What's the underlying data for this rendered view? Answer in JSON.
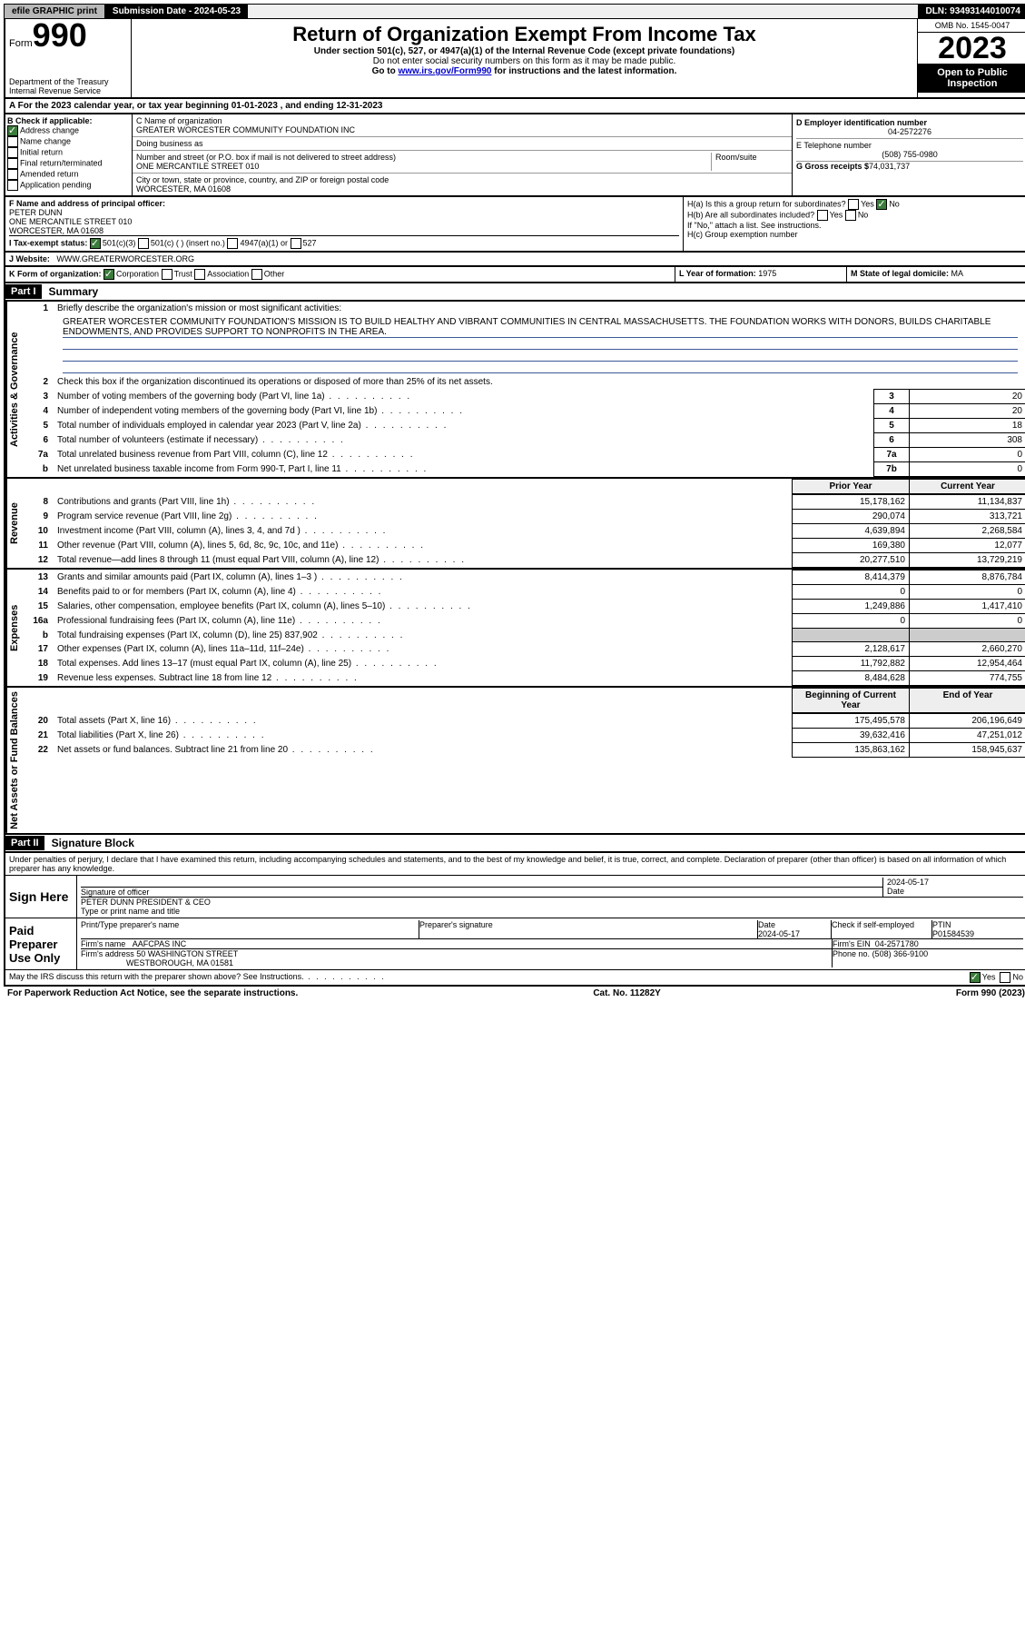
{
  "topbar": {
    "efile": "efile GRAPHIC print",
    "submission_label": "Submission Date - 2024-05-23",
    "dln": "DLN: 93493144010074"
  },
  "header": {
    "form_label": "Form",
    "form_num": "990",
    "title": "Return of Organization Exempt From Income Tax",
    "subtitle1": "Under section 501(c), 527, or 4947(a)(1) of the Internal Revenue Code (except private foundations)",
    "subtitle2": "Do not enter social security numbers on this form as it may be made public.",
    "subtitle3_pre": "Go to ",
    "subtitle3_link": "www.irs.gov/Form990",
    "subtitle3_post": " for instructions and the latest information.",
    "dept": "Department of the Treasury\nInternal Revenue Service",
    "omb": "OMB No. 1545-0047",
    "year": "2023",
    "open": "Open to Public Inspection"
  },
  "row_a": "A For the 2023 calendar year, or tax year beginning 01-01-2023   , and ending 12-31-2023",
  "col_b": {
    "label": "B Check if applicable:",
    "opts": [
      "Address change",
      "Name change",
      "Initial return",
      "Final return/terminated",
      "Amended return",
      "Application pending"
    ],
    "checked_idx": 0
  },
  "col_c": {
    "name_label": "C Name of organization",
    "name": "GREATER WORCESTER COMMUNITY FOUNDATION INC",
    "dba_label": "Doing business as",
    "addr_label": "Number and street (or P.O. box if mail is not delivered to street address)",
    "room_label": "Room/suite",
    "addr": "ONE MERCANTILE STREET 010",
    "city_label": "City or town, state or province, country, and ZIP or foreign postal code",
    "city": "WORCESTER, MA  01608"
  },
  "col_d": {
    "ein_label": "D Employer identification number",
    "ein": "04-2572276",
    "tel_label": "E Telephone number",
    "tel": "(508) 755-0980",
    "gross_label": "G Gross receipts $",
    "gross": "74,031,737"
  },
  "block_f": {
    "label": "F  Name and address of principal officer:",
    "name": "PETER DUNN",
    "addr1": "ONE MERCANTILE STREET 010",
    "addr2": "WORCESTER, MA  01608"
  },
  "block_h": {
    "ha": "H(a)  Is this a group return for subordinates?",
    "ha_yes": "Yes",
    "ha_no": "No",
    "hb": "H(b)  Are all subordinates included?",
    "hb_note": "If \"No,\" attach a list. See instructions.",
    "hc": "H(c)  Group exemption number"
  },
  "row_i": {
    "label": "I   Tax-exempt status:",
    "o1": "501(c)(3)",
    "o2": "501(c) (  ) (insert no.)",
    "o3": "4947(a)(1) or",
    "o4": "527"
  },
  "row_j": {
    "label": "J   Website:",
    "val": "WWW.GREATERWORCESTER.ORG"
  },
  "row_k": {
    "label": "K Form of organization:",
    "o1": "Corporation",
    "o2": "Trust",
    "o3": "Association",
    "o4": "Other"
  },
  "row_l": {
    "label": "L Year of formation:",
    "val": "1975"
  },
  "row_m": {
    "label": "M State of legal domicile:",
    "val": "MA"
  },
  "part1": {
    "hdr": "Part I",
    "title": "Summary",
    "l1": "Briefly describe the organization's mission or most significant activities:",
    "mission": "GREATER WORCESTER COMMUNITY FOUNDATION'S MISSION IS TO BUILD HEALTHY AND VIBRANT COMMUNITIES IN CENTRAL MASSACHUSETTS. THE FOUNDATION WORKS WITH DONORS, BUILDS CHARITABLE ENDOWMENTS, AND PROVIDES SUPPORT TO NONPROFITS IN THE AREA.",
    "l2": "Check this box      if the organization discontinued its operations or disposed of more than 25% of its net assets.",
    "governance_rows": [
      {
        "n": "3",
        "t": "Number of voting members of the governing body (Part VI, line 1a)",
        "b": "3",
        "v": "20"
      },
      {
        "n": "4",
        "t": "Number of independent voting members of the governing body (Part VI, line 1b)",
        "b": "4",
        "v": "20"
      },
      {
        "n": "5",
        "t": "Total number of individuals employed in calendar year 2023 (Part V, line 2a)",
        "b": "5",
        "v": "18"
      },
      {
        "n": "6",
        "t": "Total number of volunteers (estimate if necessary)",
        "b": "6",
        "v": "308"
      },
      {
        "n": "7a",
        "t": "Total unrelated business revenue from Part VIII, column (C), line 12",
        "b": "7a",
        "v": "0"
      },
      {
        "n": "b",
        "t": "Net unrelated business taxable income from Form 990-T, Part I, line 11",
        "b": "7b",
        "v": "0"
      }
    ],
    "prior_hdr": "Prior Year",
    "curr_hdr": "Current Year",
    "revenue_rows": [
      {
        "n": "8",
        "t": "Contributions and grants (Part VIII, line 1h)",
        "p": "15,178,162",
        "c": "11,134,837"
      },
      {
        "n": "9",
        "t": "Program service revenue (Part VIII, line 2g)",
        "p": "290,074",
        "c": "313,721"
      },
      {
        "n": "10",
        "t": "Investment income (Part VIII, column (A), lines 3, 4, and 7d )",
        "p": "4,639,894",
        "c": "2,268,584"
      },
      {
        "n": "11",
        "t": "Other revenue (Part VIII, column (A), lines 5, 6d, 8c, 9c, 10c, and 11e)",
        "p": "169,380",
        "c": "12,077"
      },
      {
        "n": "12",
        "t": "Total revenue—add lines 8 through 11 (must equal Part VIII, column (A), line 12)",
        "p": "20,277,510",
        "c": "13,729,219"
      }
    ],
    "expense_rows": [
      {
        "n": "13",
        "t": "Grants and similar amounts paid (Part IX, column (A), lines 1–3 )",
        "p": "8,414,379",
        "c": "8,876,784"
      },
      {
        "n": "14",
        "t": "Benefits paid to or for members (Part IX, column (A), line 4)",
        "p": "0",
        "c": "0"
      },
      {
        "n": "15",
        "t": "Salaries, other compensation, employee benefits (Part IX, column (A), lines 5–10)",
        "p": "1,249,886",
        "c": "1,417,410"
      },
      {
        "n": "16a",
        "t": "Professional fundraising fees (Part IX, column (A), line 11e)",
        "p": "0",
        "c": "0"
      },
      {
        "n": "b",
        "t": "Total fundraising expenses (Part IX, column (D), line 25) 837,902",
        "p": "",
        "c": "",
        "shade": true
      },
      {
        "n": "17",
        "t": "Other expenses (Part IX, column (A), lines 11a–11d, 11f–24e)",
        "p": "2,128,617",
        "c": "2,660,270"
      },
      {
        "n": "18",
        "t": "Total expenses. Add lines 13–17 (must equal Part IX, column (A), line 25)",
        "p": "11,792,882",
        "c": "12,954,464"
      },
      {
        "n": "19",
        "t": "Revenue less expenses. Subtract line 18 from line 12",
        "p": "8,484,628",
        "c": "774,755"
      }
    ],
    "begin_hdr": "Beginning of Current Year",
    "end_hdr": "End of Year",
    "net_rows": [
      {
        "n": "20",
        "t": "Total assets (Part X, line 16)",
        "p": "175,495,578",
        "c": "206,196,649"
      },
      {
        "n": "21",
        "t": "Total liabilities (Part X, line 26)",
        "p": "39,632,416",
        "c": "47,251,012"
      },
      {
        "n": "22",
        "t": "Net assets or fund balances. Subtract line 21 from line 20",
        "p": "135,863,162",
        "c": "158,945,637"
      }
    ],
    "vtab_gov": "Activities & Governance",
    "vtab_rev": "Revenue",
    "vtab_exp": "Expenses",
    "vtab_net": "Net Assets or Fund Balances"
  },
  "part2": {
    "hdr": "Part II",
    "title": "Signature Block",
    "perjury": "Under penalties of perjury, I declare that I have examined this return, including accompanying schedules and statements, and to the best of my knowledge and belief, it is true, correct, and complete. Declaration of preparer (other than officer) is based on all information of which preparer has any knowledge.",
    "sign_here": "Sign Here",
    "sig_officer_label": "Signature of officer",
    "sig_date": "2024-05-17",
    "sig_name": "PETER DUNN  PRESIDENT & CEO",
    "sig_type_label": "Type or print name and title",
    "paid": "Paid Preparer Use Only",
    "prep_name_label": "Print/Type preparer's name",
    "prep_sig_label": "Preparer's signature",
    "prep_date_label": "Date",
    "prep_date": "2024-05-17",
    "prep_check": "Check       if self-employed",
    "ptin_label": "PTIN",
    "ptin": "P01584539",
    "firm_name_label": "Firm's name",
    "firm_name": "AAFCPAS INC",
    "firm_ein_label": "Firm's EIN",
    "firm_ein": "04-2571780",
    "firm_addr_label": "Firm's address",
    "firm_addr": "50 WASHINGTON STREET",
    "firm_city": "WESTBOROUGH, MA  01581",
    "phone_label": "Phone no.",
    "phone": "(508) 366-9100",
    "discuss": "May the IRS discuss this return with the preparer shown above? See Instructions.",
    "yes": "Yes",
    "no": "No"
  },
  "footer": {
    "l": "For Paperwork Reduction Act Notice, see the separate instructions.",
    "c": "Cat. No. 11282Y",
    "r": "Form 990 (2023)"
  }
}
